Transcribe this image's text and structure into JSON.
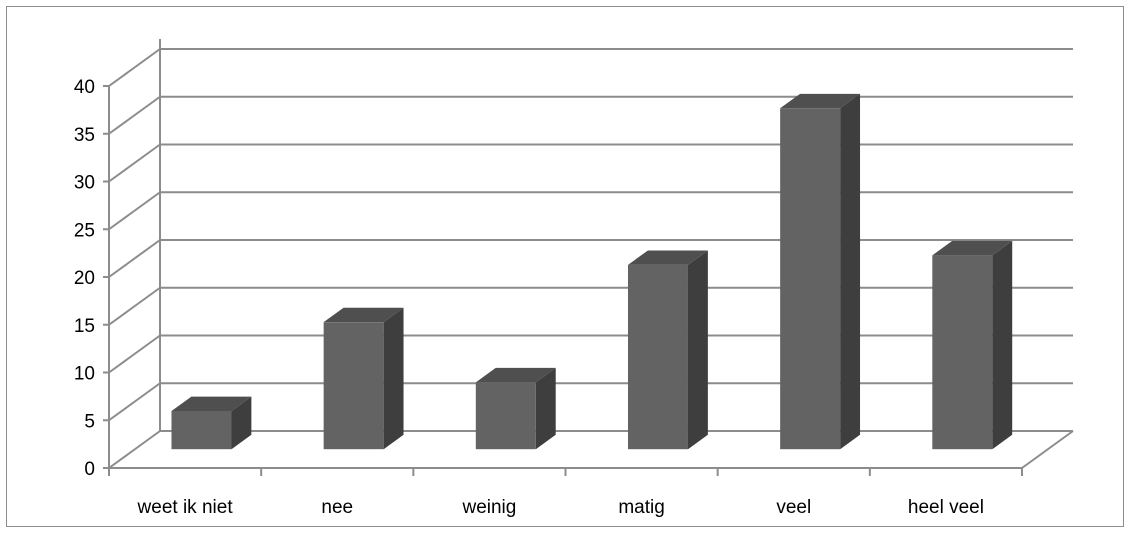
{
  "chart_data": {
    "type": "bar",
    "style": "3d-column",
    "categories": [
      "weet ik niet",
      "nee",
      "weinig",
      "matig",
      "veel",
      "heel veel"
    ],
    "values": [
      4,
      13.3,
      7,
      19.3,
      35.7,
      20.3
    ],
    "ylim": [
      0,
      40
    ],
    "yticks": [
      "0",
      "5",
      "10",
      "15",
      "20",
      "25",
      "30",
      "35",
      "40"
    ],
    "grid": true,
    "legend": "none",
    "colors": {
      "bar_front": "#636363",
      "bar_side": "#3e3e3e",
      "bar_top": "#4f4f4f",
      "gridline": "#8c8c8c"
    }
  }
}
